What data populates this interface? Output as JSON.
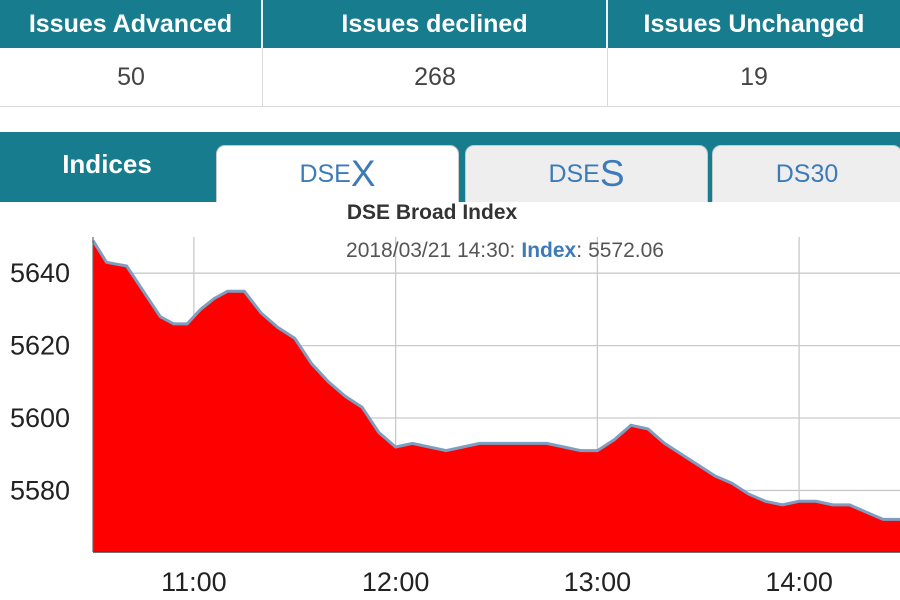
{
  "stats": {
    "headers": [
      "Issues Advanced",
      "Issues declined",
      "Issues Unchanged"
    ],
    "values": [
      "50",
      "268",
      "19"
    ]
  },
  "tabs": {
    "title": "Indices",
    "items": [
      {
        "prefix": "DSE",
        "suffix": "X"
      },
      {
        "prefix": "DSE",
        "suffix": "S"
      },
      {
        "prefix": "DS30",
        "suffix": ""
      }
    ],
    "active": "DSEX"
  },
  "chart_info": {
    "title": "DSE Broad Index",
    "tooltip_date": "2018/03/21 14:30",
    "tooltip_sep": ":",
    "tooltip_key": "Index",
    "tooltip_value": "5572.06"
  },
  "colors": {
    "header_bg": "#167c8e",
    "area_fill": "#ff0000",
    "line": "#7d9ec0",
    "tab_text": "#3d7bb8"
  },
  "chart_data": {
    "type": "area",
    "title": "DSE Broad Index",
    "xlabel": "",
    "ylabel": "",
    "x_ticks": [
      "11:00",
      "12:00",
      "13:00",
      "14:00"
    ],
    "y_ticks": [
      5580,
      5600,
      5620,
      5640
    ],
    "xlim": [
      "10:30",
      "14:30"
    ],
    "ylim": [
      5563,
      5650
    ],
    "grid": true,
    "series": [
      {
        "x": [
          "10:30",
          "10:34",
          "10:40",
          "10:45",
          "10:50",
          "10:54",
          "10:58",
          "11:02",
          "11:06",
          "11:10",
          "11:15",
          "11:20",
          "11:25",
          "11:30",
          "11:35",
          "11:40",
          "11:45",
          "11:50",
          "11:55",
          "12:00",
          "12:05",
          "12:10",
          "12:15",
          "12:20",
          "12:25",
          "12:30",
          "12:35",
          "12:40",
          "12:45",
          "12:50",
          "12:55",
          "13:00",
          "13:05",
          "13:10",
          "13:15",
          "13:20",
          "13:25",
          "13:30",
          "13:35",
          "13:40",
          "13:45",
          "13:50",
          "13:55",
          "14:00",
          "14:05",
          "14:10",
          "14:15",
          "14:20",
          "14:25",
          "14:30"
        ],
        "values": [
          5649,
          5643,
          5642,
          5635,
          5628,
          5626,
          5626,
          5630,
          5633,
          5635,
          5635,
          5629,
          5625,
          5622,
          5615,
          5610,
          5606,
          5603,
          5596,
          5592,
          5593,
          5592,
          5591,
          5592,
          5593,
          5593,
          5593,
          5593,
          5593,
          5592,
          5591,
          5591,
          5594,
          5598,
          5597,
          5593,
          5590,
          5587,
          5584,
          5582,
          5579,
          5577,
          5576,
          5577,
          5577,
          5576,
          5576,
          5574,
          5572,
          5572
        ]
      }
    ]
  }
}
